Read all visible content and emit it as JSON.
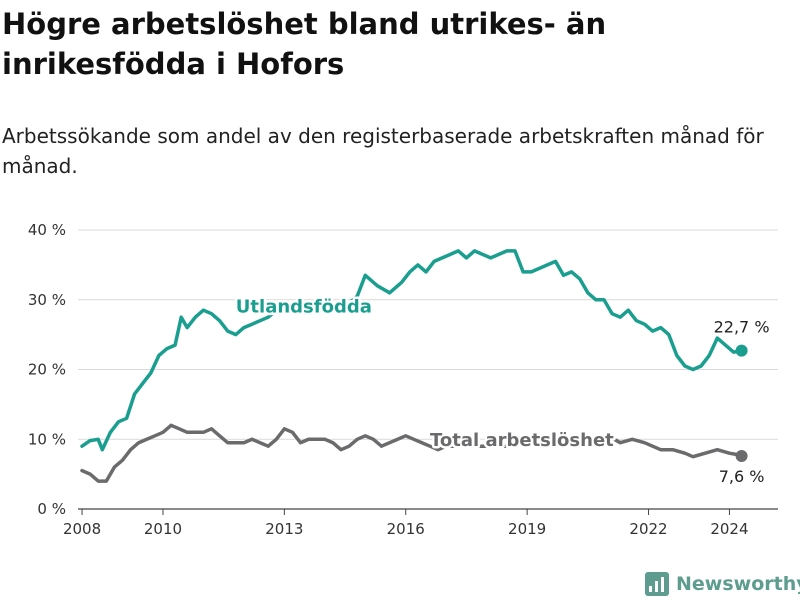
{
  "title": "Högre arbetslöshet bland utrikes- än inrikesfödda i Hofors",
  "subtitle": "Arbetssökande som andel av den registerbaserade arbetskraften månad för månad.",
  "brand": {
    "name": "Newsworthy",
    "icon": "chart-logo-icon",
    "color": "#5d9c8f"
  },
  "chart_data": {
    "type": "line",
    "title": "Högre arbetslöshet bland utrikes- än inrikesfödda i Hofors",
    "xlim": [
      2007.9,
      2025.2
    ],
    "ylim": [
      0,
      40
    ],
    "y_ticks": [
      {
        "value": 0,
        "label": "0 %"
      },
      {
        "value": 10,
        "label": "10 %"
      },
      {
        "value": 20,
        "label": "20 %"
      },
      {
        "value": 30,
        "label": "30 %"
      },
      {
        "value": 40,
        "label": "40 %"
      }
    ],
    "x_ticks": [
      {
        "value": 2008,
        "label": "2008"
      },
      {
        "value": 2010,
        "label": "2010"
      },
      {
        "value": 2013,
        "label": "2013"
      },
      {
        "value": 2016,
        "label": "2016"
      },
      {
        "value": 2019,
        "label": "2019"
      },
      {
        "value": 2022,
        "label": "2022"
      },
      {
        "value": 2024,
        "label": "2024"
      }
    ],
    "grid": "horizontal",
    "series": [
      {
        "name": "Utlandsfödda",
        "color": "#1a9e8f",
        "end_label": "22,7 %",
        "points": [
          [
            2008.0,
            9.0
          ],
          [
            2008.2,
            9.8
          ],
          [
            2008.4,
            10.0
          ],
          [
            2008.5,
            8.5
          ],
          [
            2008.7,
            11.0
          ],
          [
            2008.9,
            12.5
          ],
          [
            2009.1,
            13.0
          ],
          [
            2009.3,
            16.5
          ],
          [
            2009.5,
            18.0
          ],
          [
            2009.7,
            19.5
          ],
          [
            2009.9,
            22.0
          ],
          [
            2010.1,
            23.0
          ],
          [
            2010.3,
            23.5
          ],
          [
            2010.45,
            27.5
          ],
          [
            2010.6,
            26.0
          ],
          [
            2010.8,
            27.5
          ],
          [
            2011.0,
            28.5
          ],
          [
            2011.2,
            28.0
          ],
          [
            2011.4,
            27.0
          ],
          [
            2011.6,
            25.5
          ],
          [
            2011.8,
            25.0
          ],
          [
            2012.0,
            26.0
          ],
          [
            2012.2,
            26.5
          ],
          [
            2012.4,
            27.0
          ],
          [
            2012.6,
            27.5
          ],
          [
            2012.8,
            28.5
          ],
          [
            2013.0,
            29.0
          ],
          [
            2013.3,
            29.5
          ],
          [
            2013.6,
            29.0
          ],
          [
            2013.9,
            28.5
          ],
          [
            2014.2,
            28.5
          ],
          [
            2014.5,
            29.0
          ],
          [
            2014.8,
            30.5
          ],
          [
            2015.0,
            33.5
          ],
          [
            2015.3,
            32.0
          ],
          [
            2015.6,
            31.0
          ],
          [
            2015.9,
            32.5
          ],
          [
            2016.1,
            34.0
          ],
          [
            2016.3,
            35.0
          ],
          [
            2016.5,
            34.0
          ],
          [
            2016.7,
            35.5
          ],
          [
            2016.9,
            36.0
          ],
          [
            2017.1,
            36.5
          ],
          [
            2017.3,
            37.0
          ],
          [
            2017.5,
            36.0
          ],
          [
            2017.7,
            37.0
          ],
          [
            2017.9,
            36.5
          ],
          [
            2018.1,
            36.0
          ],
          [
            2018.3,
            36.5
          ],
          [
            2018.5,
            37.0
          ],
          [
            2018.7,
            37.0
          ],
          [
            2018.9,
            34.0
          ],
          [
            2019.1,
            34.0
          ],
          [
            2019.3,
            34.5
          ],
          [
            2019.5,
            35.0
          ],
          [
            2019.7,
            35.5
          ],
          [
            2019.9,
            33.5
          ],
          [
            2020.1,
            34.0
          ],
          [
            2020.3,
            33.0
          ],
          [
            2020.5,
            31.0
          ],
          [
            2020.7,
            30.0
          ],
          [
            2020.9,
            30.0
          ],
          [
            2021.1,
            28.0
          ],
          [
            2021.3,
            27.5
          ],
          [
            2021.5,
            28.5
          ],
          [
            2021.7,
            27.0
          ],
          [
            2021.9,
            26.5
          ],
          [
            2022.1,
            25.5
          ],
          [
            2022.3,
            26.0
          ],
          [
            2022.5,
            25.0
          ],
          [
            2022.7,
            22.0
          ],
          [
            2022.9,
            20.5
          ],
          [
            2023.1,
            20.0
          ],
          [
            2023.3,
            20.5
          ],
          [
            2023.5,
            22.0
          ],
          [
            2023.7,
            24.5
          ],
          [
            2023.9,
            23.5
          ],
          [
            2024.1,
            22.5
          ],
          [
            2024.3,
            22.7
          ]
        ]
      },
      {
        "name": "Total arbetslöshet",
        "color": "#6b6b6e",
        "end_label": "7,6 %",
        "points": [
          [
            2008.0,
            5.5
          ],
          [
            2008.2,
            5.0
          ],
          [
            2008.4,
            4.0
          ],
          [
            2008.6,
            4.0
          ],
          [
            2008.8,
            6.0
          ],
          [
            2009.0,
            7.0
          ],
          [
            2009.2,
            8.5
          ],
          [
            2009.4,
            9.5
          ],
          [
            2009.6,
            10.0
          ],
          [
            2009.8,
            10.5
          ],
          [
            2010.0,
            11.0
          ],
          [
            2010.2,
            12.0
          ],
          [
            2010.4,
            11.5
          ],
          [
            2010.6,
            11.0
          ],
          [
            2010.8,
            11.0
          ],
          [
            2011.0,
            11.0
          ],
          [
            2011.2,
            11.5
          ],
          [
            2011.4,
            10.5
          ],
          [
            2011.6,
            9.5
          ],
          [
            2011.8,
            9.5
          ],
          [
            2012.0,
            9.5
          ],
          [
            2012.2,
            10.0
          ],
          [
            2012.4,
            9.5
          ],
          [
            2012.6,
            9.0
          ],
          [
            2012.8,
            10.0
          ],
          [
            2013.0,
            11.5
          ],
          [
            2013.2,
            11.0
          ],
          [
            2013.4,
            9.5
          ],
          [
            2013.6,
            10.0
          ],
          [
            2013.8,
            10.0
          ],
          [
            2014.0,
            10.0
          ],
          [
            2014.2,
            9.5
          ],
          [
            2014.4,
            8.5
          ],
          [
            2014.6,
            9.0
          ],
          [
            2014.8,
            10.0
          ],
          [
            2015.0,
            10.5
          ],
          [
            2015.2,
            10.0
          ],
          [
            2015.4,
            9.0
          ],
          [
            2015.6,
            9.5
          ],
          [
            2015.8,
            10.0
          ],
          [
            2016.0,
            10.5
          ],
          [
            2016.2,
            10.0
          ],
          [
            2016.4,
            9.5
          ],
          [
            2016.6,
            9.0
          ],
          [
            2016.8,
            8.5
          ],
          [
            2017.0,
            9.0
          ],
          [
            2017.5,
            9.0
          ],
          [
            2018.0,
            9.0
          ],
          [
            2018.5,
            9.0
          ],
          [
            2019.0,
            9.5
          ],
          [
            2019.5,
            10.0
          ],
          [
            2020.0,
            10.0
          ],
          [
            2020.5,
            10.0
          ],
          [
            2021.0,
            10.5
          ],
          [
            2021.3,
            9.5
          ],
          [
            2021.6,
            10.0
          ],
          [
            2021.9,
            9.5
          ],
          [
            2022.1,
            9.0
          ],
          [
            2022.3,
            8.5
          ],
          [
            2022.6,
            8.5
          ],
          [
            2022.9,
            8.0
          ],
          [
            2023.1,
            7.5
          ],
          [
            2023.4,
            8.0
          ],
          [
            2023.7,
            8.5
          ],
          [
            2024.0,
            8.0
          ],
          [
            2024.2,
            7.8
          ],
          [
            2024.3,
            7.6
          ]
        ]
      }
    ]
  }
}
